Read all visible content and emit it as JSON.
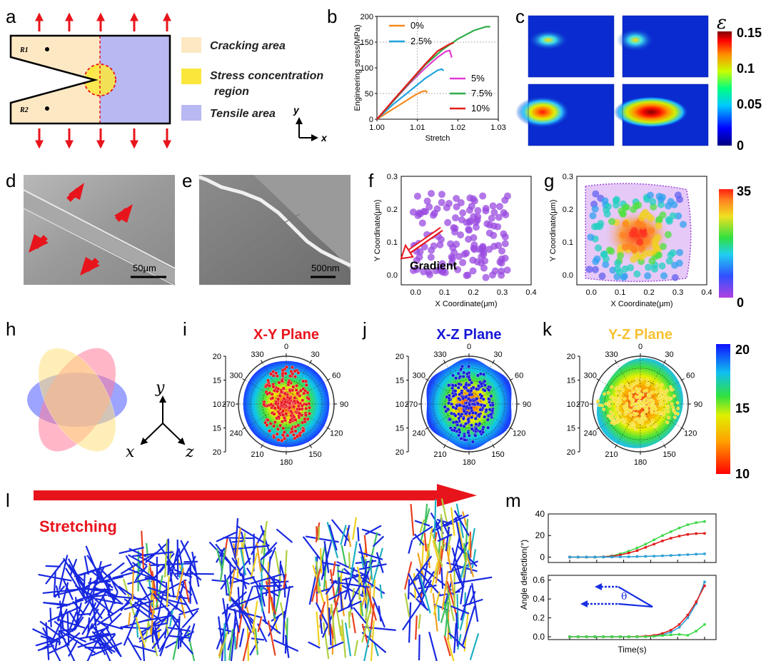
{
  "panels": {
    "a": "a",
    "b": "b",
    "c": "c",
    "d": "d",
    "e": "e",
    "f": "f",
    "g": "g",
    "h": "h",
    "i": "i",
    "j": "j",
    "k": "k",
    "l": "l",
    "m": "m"
  },
  "panel_a": {
    "r1": "R1",
    "r2": "R2",
    "legend": [
      "Cracking area",
      "Stress concentration",
      "region",
      "Tensile area"
    ],
    "axis_y": "y",
    "axis_x": "x",
    "colors": {
      "cracking": "#fde8c4",
      "stress": "#fbe73c",
      "tensile": "#b8b8f2",
      "arrow": "#e8141c"
    }
  },
  "chart_b": {
    "type": "line",
    "title": "",
    "xlabel": "Stretch",
    "ylabel": "Engineering stress(MPa)",
    "xlim": [
      1.0,
      1.03
    ],
    "ylim": [
      0,
      200
    ],
    "xticks": [
      "1.00",
      "1.01",
      "1.02",
      "1.03"
    ],
    "yticks": [
      "0",
      "50",
      "100",
      "150",
      "200"
    ],
    "series": [
      {
        "name": "0%",
        "color": "#f58a1f",
        "points": [
          [
            1.0,
            0
          ],
          [
            1.003,
            15
          ],
          [
            1.006,
            30
          ],
          [
            1.009,
            44
          ],
          [
            1.011,
            53
          ],
          [
            1.012,
            55
          ],
          [
            1.0125,
            52
          ]
        ]
      },
      {
        "name": "2.5%",
        "color": "#1fa3e0",
        "points": [
          [
            1.0,
            0
          ],
          [
            1.004,
            28
          ],
          [
            1.008,
            55
          ],
          [
            1.012,
            80
          ],
          [
            1.015,
            95
          ],
          [
            1.016,
            97
          ],
          [
            1.0165,
            95
          ]
        ]
      },
      {
        "name": "5%",
        "color": "#e33ad1",
        "points": [
          [
            1.0,
            0
          ],
          [
            1.004,
            35
          ],
          [
            1.008,
            68
          ],
          [
            1.012,
            100
          ],
          [
            1.015,
            120
          ],
          [
            1.017,
            132
          ],
          [
            1.018,
            133
          ],
          [
            1.0185,
            120
          ]
        ]
      },
      {
        "name": "7.5%",
        "color": "#2fae4a",
        "points": [
          [
            1.0,
            0
          ],
          [
            1.004,
            35
          ],
          [
            1.008,
            70
          ],
          [
            1.012,
            105
          ],
          [
            1.016,
            135
          ],
          [
            1.02,
            157
          ],
          [
            1.024,
            172
          ],
          [
            1.027,
            180
          ],
          [
            1.028,
            181
          ]
        ]
      },
      {
        "name": "10%",
        "color": "#e21a1a",
        "points": [
          [
            1.0,
            0
          ],
          [
            1.004,
            36
          ],
          [
            1.008,
            72
          ],
          [
            1.012,
            108
          ],
          [
            1.015,
            133
          ],
          [
            1.018,
            146
          ],
          [
            1.019,
            148
          ]
        ]
      }
    ]
  },
  "panel_c": {
    "cbar_symbol": "ε",
    "cbar_ticks": [
      "0.15",
      "0.1",
      "0.05",
      "0"
    ]
  },
  "panel_d": {
    "scale": "50μm"
  },
  "panel_e": {
    "scale": "500nm"
  },
  "chart_f": {
    "type": "scatter",
    "xlabel": "X Coordinate(μm)",
    "ylabel": "Y Coordinate(μm)",
    "xlim": [
      -0.05,
      0.4
    ],
    "ylim": [
      -0.03,
      0.3
    ],
    "xticks": [
      "0.0",
      "0.1",
      "0.2",
      "0.3",
      "0.4"
    ],
    "yticks": [
      "0.0",
      "0.1",
      "0.2",
      "0.3"
    ],
    "annotation": "Gradient"
  },
  "chart_g": {
    "type": "scatter",
    "xlabel": "X Coordinate(μm)",
    "ylabel": "Y Coordinate(μm)",
    "xlim": [
      -0.05,
      0.4
    ],
    "ylim": [
      -0.03,
      0.3
    ],
    "xticks": [
      "0.0",
      "0.1",
      "0.2",
      "0.3",
      "0.4"
    ],
    "yticks": [
      "0.0",
      "0.1",
      "0.2",
      "0.3"
    ],
    "cbar_ticks": [
      "35",
      "0"
    ]
  },
  "panel_h": {
    "axes": [
      "y",
      "x",
      "z"
    ]
  },
  "polar": {
    "angles": [
      "0",
      "30",
      "60",
      "90",
      "120",
      "150",
      "180",
      "210",
      "240",
      "270",
      "300",
      "330"
    ],
    "radial": [
      "20",
      "15",
      "10",
      "15",
      "20"
    ],
    "planes": [
      {
        "title": "X-Y Plane",
        "color": "#e8141c",
        "dots": "#e8141c"
      },
      {
        "title": "X-Z Plane",
        "color": "#1616d8",
        "dots": "#1616d8"
      },
      {
        "title": "Y-Z Plane",
        "color": "#f6c232",
        "dots": "#f6e032"
      }
    ],
    "cbar_ticks": [
      "20",
      "15",
      "10"
    ]
  },
  "panel_l": {
    "label": "Stretching"
  },
  "chart_m": {
    "type": "line",
    "ylabel": "Angle deflection(°)",
    "xlabel": "Time(s)",
    "top": {
      "ylim": [
        -5,
        40
      ],
      "yticks": [
        "0",
        "20",
        "40"
      ],
      "series": [
        {
          "color": "#3dd94a",
          "values": [
            0,
            0,
            0,
            0,
            0.3,
            1.2,
            3,
            5.5,
            8.5,
            12,
            16,
            20,
            23.5,
            27,
            30,
            32,
            33
          ]
        },
        {
          "color": "#e21a1a",
          "values": [
            0,
            0,
            0,
            0,
            0.2,
            0.8,
            2,
            3.8,
            6,
            9,
            12,
            15,
            17.5,
            19.5,
            21,
            21.8,
            22
          ]
        },
        {
          "color": "#2a9fd6",
          "values": [
            0,
            0,
            0,
            0,
            0,
            0.1,
            0.2,
            0.3,
            0.5,
            0.7,
            0.9,
            1.2,
            1.5,
            1.9,
            2.3,
            2.7,
            3.0
          ]
        }
      ]
    },
    "bottom": {
      "ylim": [
        -0.03,
        0.65
      ],
      "yticks": [
        "0.0",
        "0.2",
        "0.4",
        "0.6"
      ],
      "theta": "θ",
      "series": [
        {
          "color": "#2a9fd6",
          "values": [
            0,
            0,
            0,
            0,
            0,
            0,
            0,
            0,
            0,
            0.005,
            0.01,
            0.02,
            0.05,
            0.1,
            0.2,
            0.35,
            0.58
          ]
        },
        {
          "color": "#e21a1a",
          "values": [
            0,
            0,
            0,
            0,
            0,
            0,
            0,
            0,
            0.002,
            0.006,
            0.015,
            0.035,
            0.07,
            0.13,
            0.23,
            0.37,
            0.54
          ]
        },
        {
          "color": "#3dd94a",
          "values": [
            0,
            0,
            0,
            0,
            0,
            0,
            0,
            0,
            0,
            0,
            0.005,
            0.012,
            0.02,
            0.025,
            0.015,
            0.06,
            0.13
          ]
        }
      ]
    }
  }
}
